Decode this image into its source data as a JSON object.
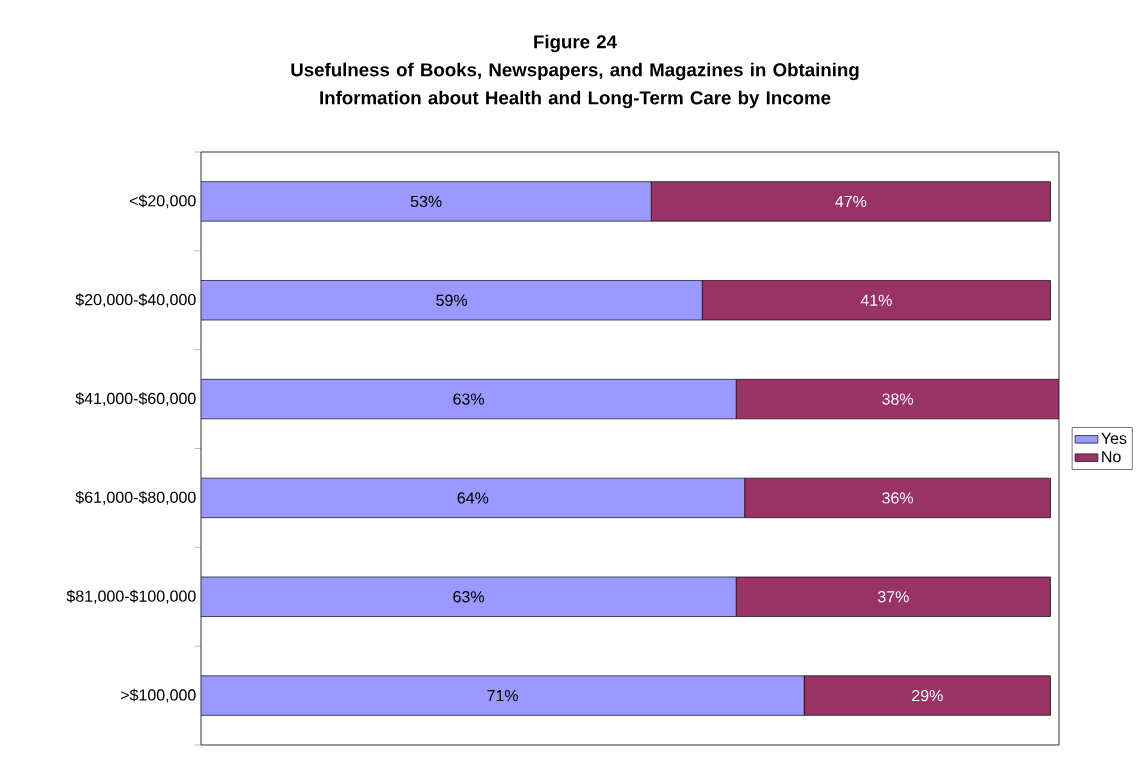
{
  "chart_data": {
    "type": "bar",
    "orientation": "horizontal",
    "stacked": true,
    "title": "Figure 24",
    "subtitle": "Usefulness of Books, Newspapers, and Magazines in Obtaining Information about Health and Long-Term Care by Income",
    "categories": [
      "<$20,000",
      "$20,000-$40,000",
      "$41,000-$60,000",
      "$61,000-$80,000",
      "$81,000-$100,000",
      ">$100,000"
    ],
    "series": [
      {
        "name": "Yes",
        "color": "#9999ff",
        "values": [
          53,
          59,
          63,
          64,
          63,
          71
        ],
        "value_labels": [
          "53%",
          "59%",
          "63%",
          "64%",
          "63%",
          "71%"
        ]
      },
      {
        "name": "No",
        "color": "#993366",
        "values": [
          47,
          41,
          38,
          36,
          37,
          29
        ],
        "value_labels": [
          "47%",
          "41%",
          "38%",
          "36%",
          "37%",
          "29%"
        ]
      }
    ],
    "legend": "right"
  }
}
